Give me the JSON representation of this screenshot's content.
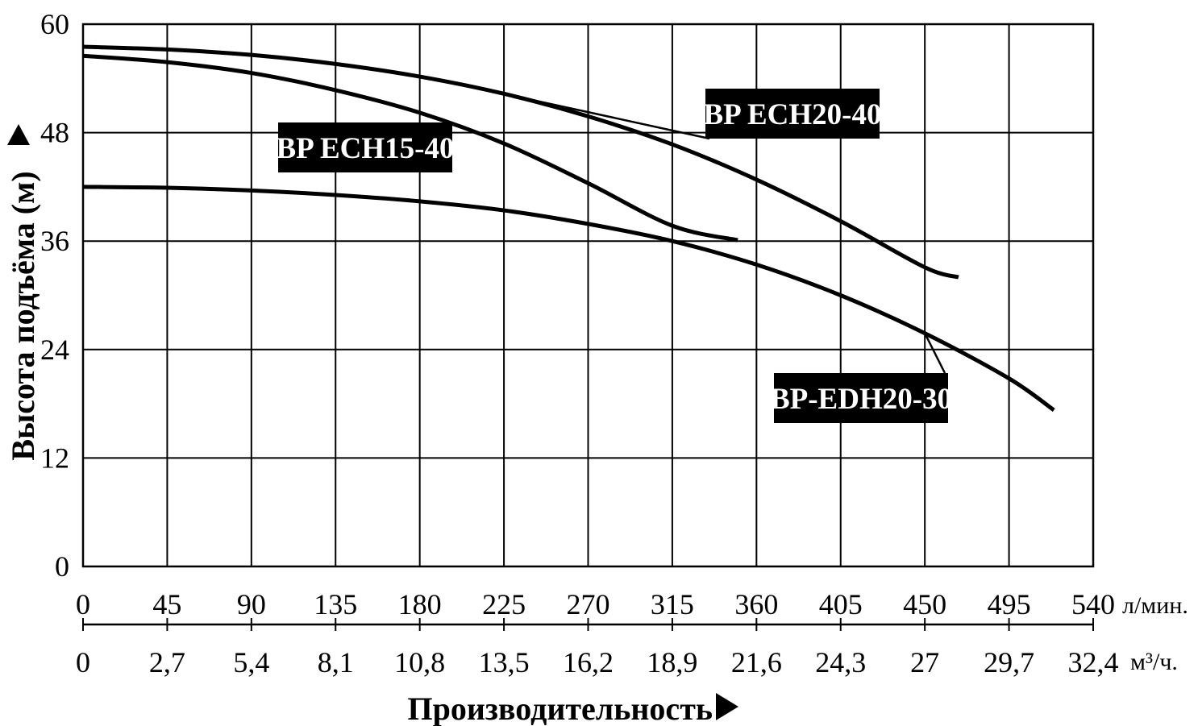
{
  "chart_data": {
    "type": "line",
    "ylabel": "Высота подъёма (м)",
    "xlabel": "Производительность",
    "ylim": [
      0,
      60
    ],
    "yticks": [
      "0",
      "12",
      "24",
      "36",
      "48",
      "60"
    ],
    "xlim": [
      0,
      540
    ],
    "xticks_lpm": [
      "0",
      "45",
      "90",
      "135",
      "180",
      "225",
      "270",
      "315",
      "360",
      "405",
      "450",
      "495",
      "540"
    ],
    "xunit_lpm": "л/мин.",
    "xticks_m3h": [
      "0",
      "2,7",
      "5,4",
      "8,1",
      "10,8",
      "13,5",
      "16,2",
      "18,9",
      "21,6",
      "24,3",
      "27",
      "29,7",
      "32,4"
    ],
    "xunit_m3h": "м³/ч.",
    "grid": true,
    "series": [
      {
        "name": "BP ECH20-40",
        "x": [
          0,
          45,
          90,
          135,
          180,
          225,
          270,
          315,
          360,
          405,
          450,
          468
        ],
        "y": [
          57.5,
          57.2,
          56.6,
          55.6,
          54.2,
          52.3,
          49.8,
          46.7,
          42.8,
          38.2,
          33.1,
          32.0
        ]
      },
      {
        "name": "BP ECH15-40",
        "x": [
          0,
          45,
          90,
          135,
          180,
          225,
          270,
          315,
          350
        ],
        "y": [
          56.5,
          55.8,
          54.6,
          52.7,
          50.2,
          46.8,
          42.4,
          37.7,
          36.1
        ]
      },
      {
        "name": "BP-EDH20-30",
        "x": [
          0,
          45,
          90,
          135,
          180,
          225,
          270,
          315,
          360,
          405,
          450,
          495,
          519
        ],
        "y": [
          42.0,
          41.9,
          41.6,
          41.1,
          40.4,
          39.4,
          37.9,
          36.0,
          33.4,
          30.0,
          25.8,
          20.8,
          17.3
        ]
      }
    ]
  }
}
